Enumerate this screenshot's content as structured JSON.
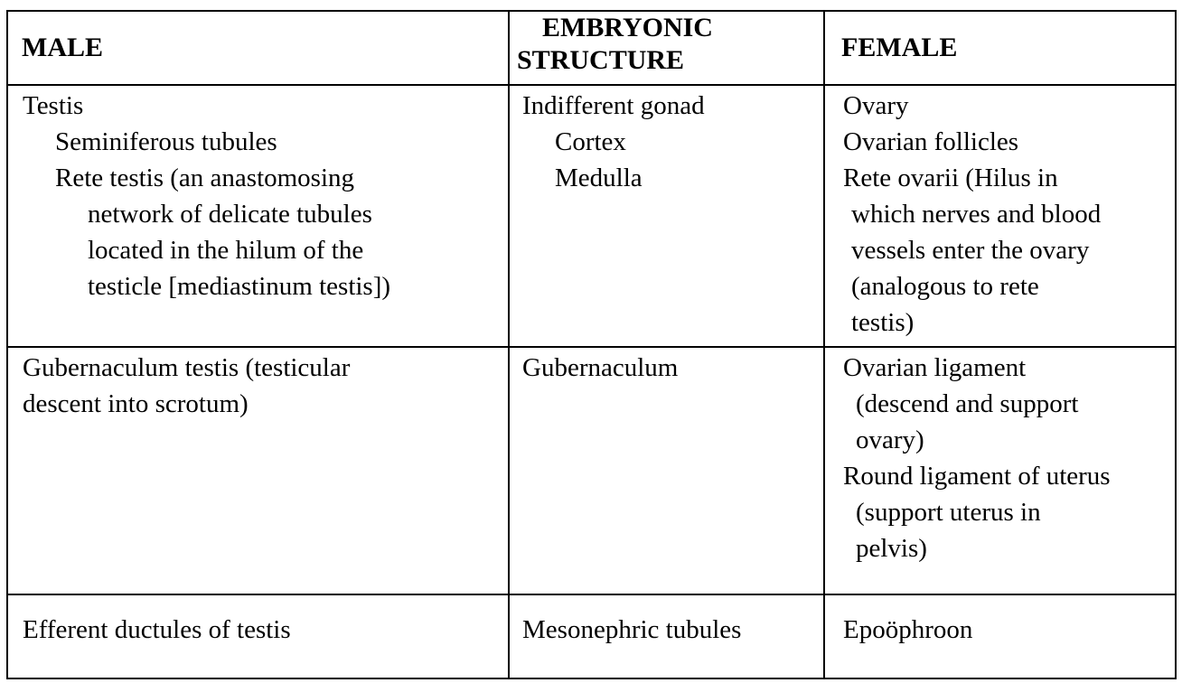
{
  "headers": {
    "male": "MALE",
    "embryonic_line1": "EMBRYONIC",
    "embryonic_line2": "STRUCTURE",
    "female": "FEMALE"
  },
  "rows": [
    {
      "male": [
        "Testis",
        "Seminiferous tubules",
        "Rete testis (an anastomosing",
        "network of delicate tubules",
        "located in the hilum of the",
        "testicle [mediastinum testis])"
      ],
      "embryonic": [
        "Indifferent gonad",
        "Cortex",
        "Medulla"
      ],
      "female": [
        "Ovary",
        "Ovarian follicles",
        "Rete ovarii (Hilus in",
        "which nerves and blood",
        "vessels enter the ovary",
        "(analogous to rete",
        "testis)"
      ]
    },
    {
      "male": [
        "Gubernaculum testis (testicular",
        "descent into scrotum)"
      ],
      "embryonic": [
        "Gubernaculum"
      ],
      "female": [
        "Ovarian ligament",
        "(descend and support",
        "ovary)",
        "Round ligament of uterus",
        "(support uterus in",
        "pelvis)"
      ]
    },
    {
      "male": [
        "Efferent ductules of testis"
      ],
      "embryonic": [
        "Mesonephric tubules"
      ],
      "female": [
        "Epoöphroon"
      ]
    }
  ]
}
